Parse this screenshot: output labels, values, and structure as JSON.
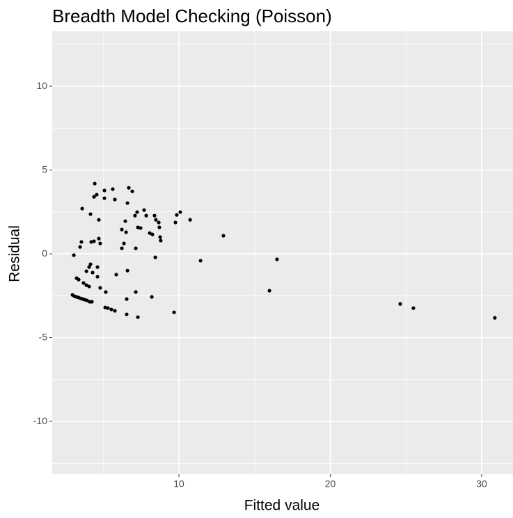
{
  "chart_data": {
    "type": "scatter",
    "title": "Breadth Model Checking (Poisson)",
    "x_label": "Fitted value",
    "y_label": "Residual",
    "color": "#000000",
    "grid": true,
    "background": "#ebebeb",
    "xlim": [
      1.63,
      32.07
    ],
    "ylim": [
      -13.15,
      13.28
    ],
    "xticks": [
      10,
      20,
      30
    ],
    "yticks": [
      -10,
      -5,
      0,
      5,
      10
    ],
    "x_minor_ticks": [
      5,
      15,
      25
    ],
    "y_minor_ticks": [
      -12.5,
      -7.5,
      -2.5,
      2.5,
      7.5,
      12.5
    ],
    "x": [
      2.97,
      3.1,
      3.24,
      3.38,
      3.52,
      3.66,
      3.79,
      3.93,
      4.11,
      4.25,
      3.06,
      3.24,
      3.47,
      3.56,
      3.61,
      3.38,
      3.7,
      3.89,
      4.07,
      3.89,
      4.07,
      4.16,
      4.3,
      4.16,
      4.21,
      4.39,
      4.44,
      4.39,
      4.57,
      4.71,
      4.71,
      4.8,
      4.62,
      4.8,
      4.62,
      5.08,
      5.08,
      5.17,
      5.13,
      5.31,
      5.54,
      5.77,
      5.63,
      5.77,
      5.86,
      6.23,
      6.23,
      6.37,
      6.46,
      6.51,
      6.6,
      6.69,
      6.6,
      6.55,
      6.55,
      6.92,
      7.1,
      7.24,
      7.15,
      7.29,
      7.47,
      7.15,
      7.29,
      7.7,
      7.84,
      8.07,
      8.25,
      8.21,
      8.39,
      8.48,
      8.44,
      8.67,
      8.76,
      8.8,
      8.71,
      9.68,
      9.77,
      9.86,
      10.09,
      10.74,
      11.43,
      12.94,
      15.98,
      16.48,
      24.62,
      25.49,
      30.87
    ],
    "y": [
      -2.45,
      -2.53,
      -2.57,
      -2.61,
      -2.66,
      -2.7,
      -2.74,
      -2.78,
      -2.86,
      -2.86,
      -0.08,
      -1.45,
      0.41,
      0.71,
      2.7,
      -1.54,
      -1.74,
      -1.87,
      -1.95,
      -1.04,
      -0.79,
      -0.62,
      -1.12,
      2.37,
      0.71,
      0.75,
      4.19,
      3.4,
      3.53,
      2.03,
      0.91,
      0.62,
      -1.37,
      -2.03,
      -0.79,
      3.78,
      3.32,
      -2.28,
      -3.2,
      -3.24,
      -3.32,
      -3.4,
      3.86,
      3.24,
      -1.24,
      1.45,
      0.33,
      0.62,
      1.95,
      1.29,
      3.03,
      3.94,
      -1.0,
      -2.7,
      -3.61,
      3.73,
      2.28,
      2.49,
      0.33,
      1.58,
      1.54,
      -2.28,
      -3.78,
      2.61,
      2.28,
      1.24,
      1.16,
      -2.57,
      2.28,
      2.03,
      -0.21,
      1.87,
      1.0,
      0.79,
      1.58,
      -3.49,
      1.87,
      2.32,
      2.49,
      2.03,
      -0.41,
      1.08,
      -2.2,
      -0.33,
      -2.99,
      -3.24,
      -3.82
    ]
  }
}
